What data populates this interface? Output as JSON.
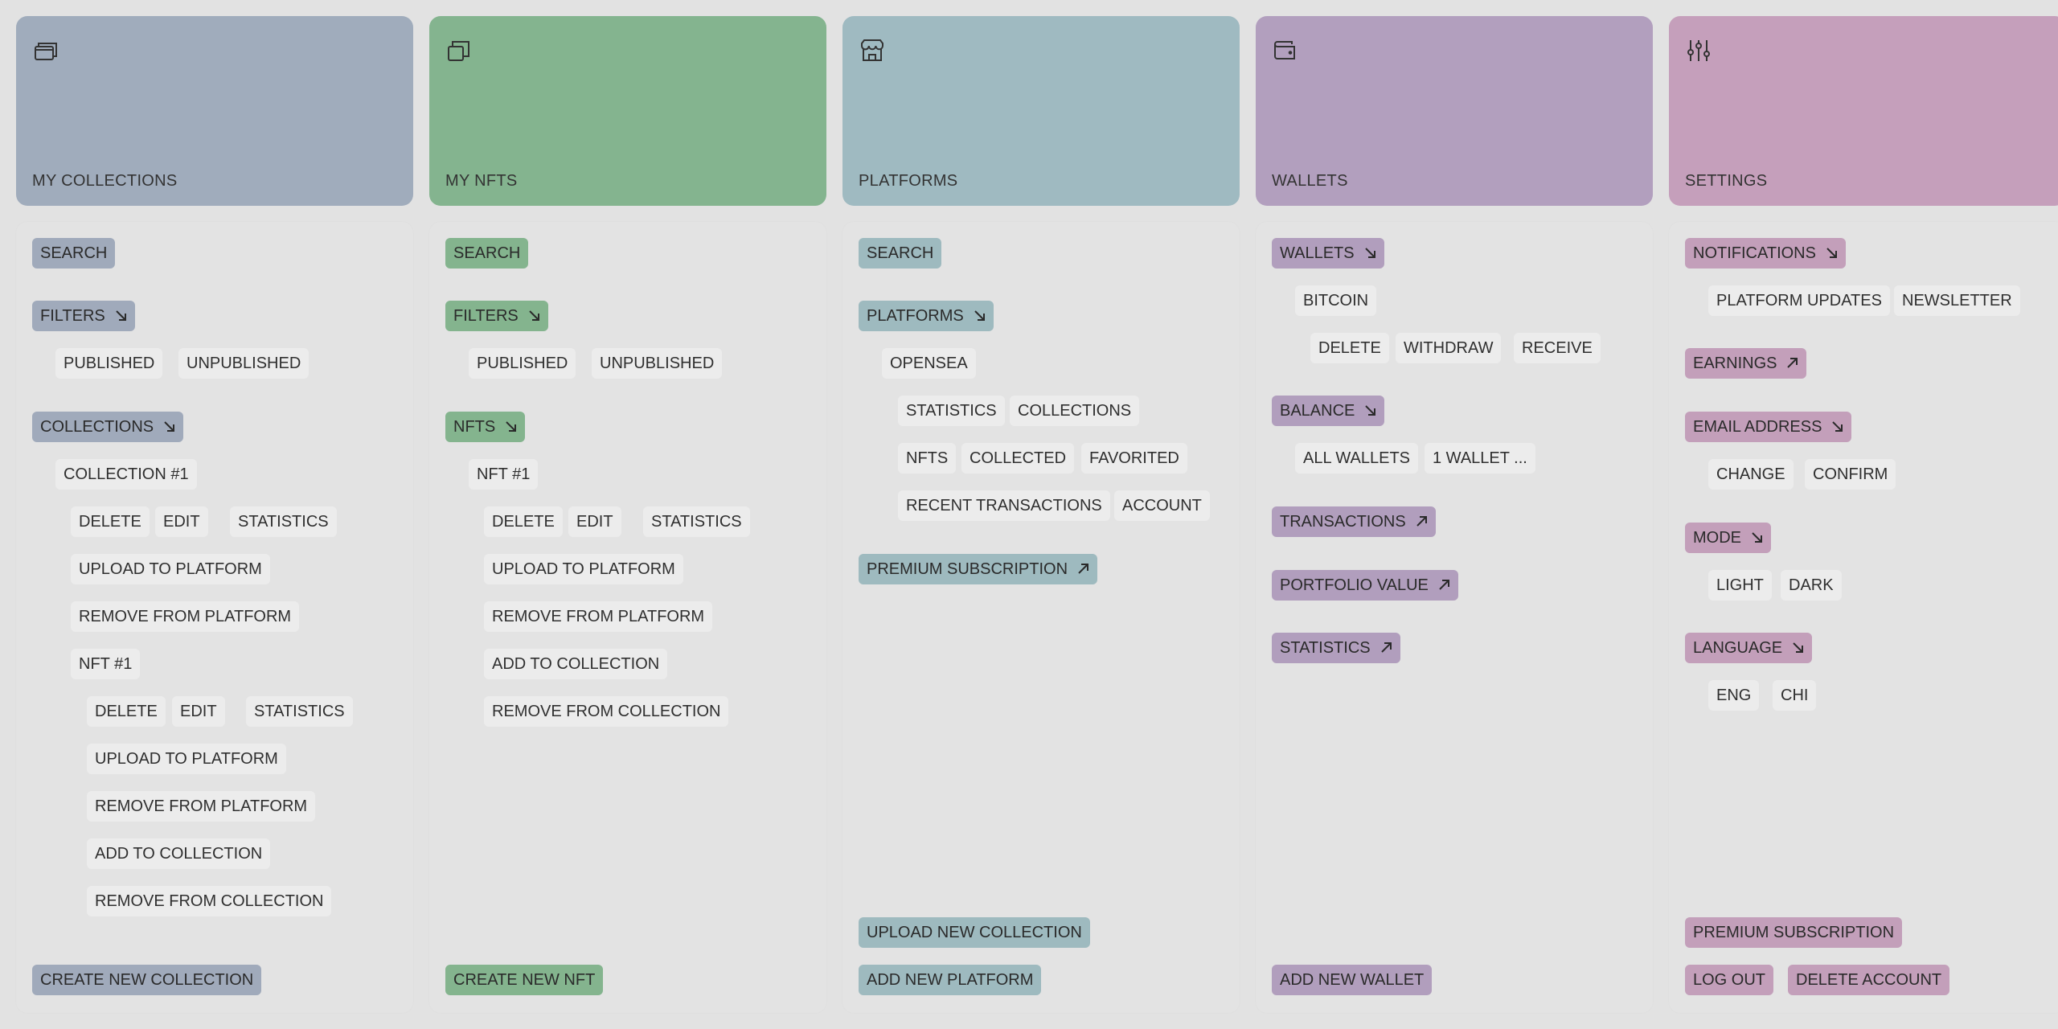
{
  "columns": [
    {
      "title": "MY COLLECTIONS",
      "icon": "cards-stack-icon",
      "color": "#a0acbc",
      "search": "SEARCH",
      "filters": "FILTERS",
      "filter_options": [
        "PUBLISHED",
        "UNPUBLISHED"
      ],
      "collections": "COLLECTIONS",
      "collection_item": "COLLECTION #1",
      "collection_actions": [
        "DELETE",
        "EDIT",
        "STATISTICS"
      ],
      "upload": "UPLOAD TO PLATFORM",
      "remove_platform": "REMOVE FROM PLATFORM",
      "nft_item": "NFT #1",
      "nft_actions": [
        "DELETE",
        "EDIT",
        "STATISTICS"
      ],
      "nft_upload": "UPLOAD TO PLATFORM",
      "nft_remove_platform": "REMOVE FROM PLATFORM",
      "nft_add_collection": "ADD TO COLLECTION",
      "nft_remove_collection": "REMOVE FROM COLLECTION",
      "create": "CREATE NEW COLLECTION"
    },
    {
      "title": "MY NFTS",
      "icon": "copy-icon",
      "color": "#84b48f",
      "search": "SEARCH",
      "filters": "FILTERS",
      "filter_options": [
        "PUBLISHED",
        "UNPUBLISHED"
      ],
      "nfts": "NFTS",
      "nft_item": "NFT #1",
      "nft_actions": [
        "DELETE",
        "EDIT",
        "STATISTICS"
      ],
      "upload": "UPLOAD TO PLATFORM",
      "remove_platform": "REMOVE FROM PLATFORM",
      "add_collection": "ADD TO COLLECTION",
      "remove_collection": "REMOVE FROM COLLECTION",
      "create": "CREATE NEW NFT"
    },
    {
      "title": "PLATFORMS",
      "icon": "storefront-icon",
      "color": "#9fbac1",
      "search": "SEARCH",
      "platforms": "PLATFORMS",
      "platform_item": "OPENSEA",
      "row1": [
        "STATISTICS",
        "COLLECTIONS"
      ],
      "row2": [
        "NFTS",
        "COLLECTED",
        "FAVORITED"
      ],
      "row3": [
        "RECENT TRANSACTIONS",
        "ACCOUNT"
      ],
      "premium": "PREMIUM SUBSCRIPTION",
      "upload_collection": "UPLOAD NEW COLLECTION",
      "add_platform": "ADD NEW PLATFORM"
    },
    {
      "title": "WALLETS",
      "icon": "wallet-icon",
      "color": "#b29fbe",
      "wallets": "WALLETS",
      "wallet_item": "BITCOIN",
      "wallet_actions": [
        "DELETE",
        "WITHDRAW",
        "RECEIVE"
      ],
      "balance": "BALANCE",
      "balance_options": [
        "ALL WALLETS",
        "1 WALLET ..."
      ],
      "transactions": "TRANSACTIONS",
      "portfolio": "PORTFOLIO VALUE",
      "statistics": "STATISTICS",
      "add_wallet": "ADD NEW WALLET"
    },
    {
      "title": "SETTINGS",
      "icon": "sliders-icon",
      "color": "#c59fbb",
      "notifications": "NOTIFICATIONS",
      "notification_options": [
        "PLATFORM UPDATES",
        "NEWSLETTER"
      ],
      "earnings": "EARNINGS",
      "email": "EMAIL ADDRESS",
      "email_options": [
        "CHANGE",
        "CONFIRM"
      ],
      "mode": "MODE",
      "mode_options": [
        "LIGHT",
        "DARK"
      ],
      "language": "LANGUAGE",
      "language_options": [
        "ENG",
        "CHI"
      ],
      "premium": "PREMIUM SUBSCRIPTION",
      "logout": "LOG OUT",
      "delete_account": "DELETE ACCOUNT"
    }
  ]
}
